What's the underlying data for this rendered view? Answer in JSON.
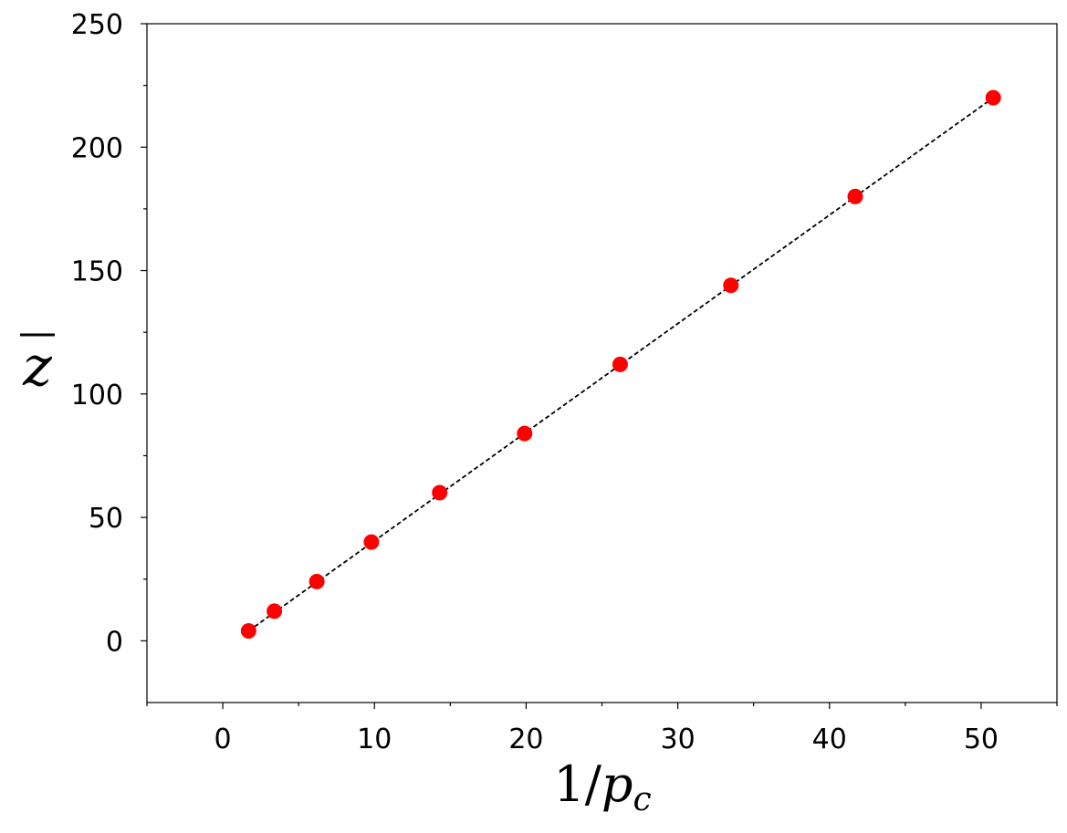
{
  "chart_data": {
    "type": "scatter",
    "xlabel": "1/p_c",
    "ylabel": "z̄",
    "xlim": [
      -5,
      55
    ],
    "ylim": [
      -25,
      250
    ],
    "x_ticks": [
      "0",
      "10",
      "20",
      "30",
      "40",
      "50"
    ],
    "y_ticks": [
      "0",
      "50",
      "100",
      "150",
      "200",
      "250"
    ],
    "grid": false,
    "series": [
      {
        "style": "markers",
        "color": "#ff0000",
        "points": [
          {
            "x": 1.7,
            "y": 4
          },
          {
            "x": 3.4,
            "y": 12
          },
          {
            "x": 6.2,
            "y": 24
          },
          {
            "x": 9.8,
            "y": 40
          },
          {
            "x": 14.3,
            "y": 60
          },
          {
            "x": 19.9,
            "y": 84
          },
          {
            "x": 26.2,
            "y": 112
          },
          {
            "x": 33.5,
            "y": 144
          },
          {
            "x": 41.7,
            "y": 180
          },
          {
            "x": 50.8,
            "y": 220
          }
        ]
      },
      {
        "style": "dashed-line",
        "color": "#000000",
        "points": [
          {
            "x": 1.7,
            "y": 4
          },
          {
            "x": 50.8,
            "y": 220
          }
        ]
      }
    ]
  }
}
